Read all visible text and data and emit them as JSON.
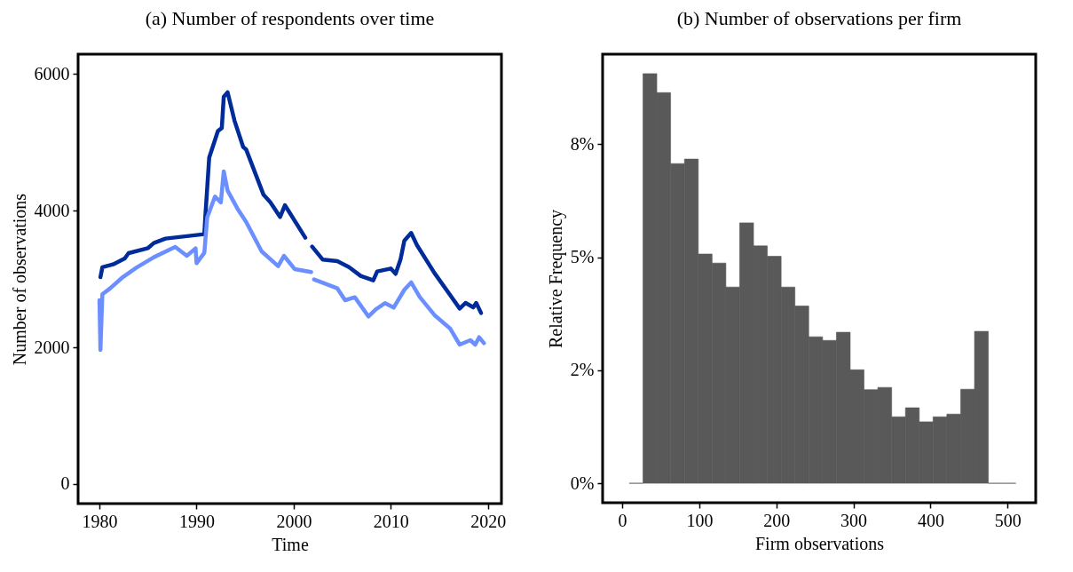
{
  "chart_data": [
    {
      "type": "line",
      "title": "(a) Number of respondents over time",
      "xlabel": "Time",
      "ylabel": "Number of observations",
      "xlim": [
        1977.8,
        2021.4
      ],
      "ylim": [
        -286,
        6287
      ],
      "xticks": [
        1980,
        1990,
        2000,
        2010,
        2020
      ],
      "yticks": [
        0,
        2000,
        4000,
        6000
      ],
      "series": [
        {
          "color": "#002b9a",
          "x": [
            1980.1,
            1980.3,
            1981.4,
            1982.6,
            1983.0,
            1985.0,
            1985.6,
            1986.8,
            1990.8,
            1990.9,
            1991.3,
            1992.2,
            1992.6,
            1992.8,
            1993.2,
            1993.9,
            1994.8,
            1995.1,
            1996.9,
            1997.6,
            1998.6,
            1999.1,
            2001.2,
            2001.6,
            2001.9,
            2003.0,
            2004.5,
            2005.7,
            2006.9,
            2008.2,
            2008.6,
            2010.0,
            2010.5,
            2011.0,
            2011.4,
            2012.1,
            2012.7,
            2014.5,
            2017.1,
            2017.7,
            2018.5,
            2018.8,
            2019.3
          ],
          "values": [
            3027,
            3170,
            3213,
            3299,
            3377,
            3451,
            3525,
            3590,
            3655,
            3906,
            4773,
            5163,
            5207,
            5663,
            5729,
            5318,
            4929,
            4895,
            4230,
            4121,
            3906,
            4078,
            3603,
            null,
            3473,
            3282,
            3260,
            3173,
            3044,
            2979,
            3109,
            3152,
            3075,
            3282,
            3559,
            3672,
            3494,
            3087,
            2567,
            2649,
            2584,
            2649,
            2502
          ]
        },
        {
          "color": "#6b8fff",
          "x": [
            1980.0,
            1980.1,
            1980.3,
            1981.1,
            1982.3,
            1983.8,
            1985.6,
            1987.8,
            1989.0,
            1989.9,
            1990.0,
            1990.8,
            1991.1,
            1991.9,
            1992.5,
            1992.8,
            1993.2,
            1994.2,
            1995.1,
            1996.7,
            1998.4,
            1999.0,
            2000.1,
            2001.8,
            2001.95,
            2002.1,
            2003.3,
            2004.5,
            2005.3,
            2006.3,
            2007.7,
            2008.5,
            2009.4,
            2010.3,
            2011.4,
            2012.1,
            2013.0,
            2014.5,
            2016.1,
            2017.1,
            2018.2,
            2018.7,
            2019.1,
            2019.6
          ],
          "values": [
            2689,
            1961,
            2776,
            2862,
            3014,
            3165,
            3317,
            3468,
            3338,
            3447,
            3230,
            3382,
            3901,
            4205,
            4118,
            4573,
            4291,
            4031,
            3836,
            3403,
            3187,
            3338,
            3144,
            3101,
            null,
            2992,
            2927,
            2862,
            2689,
            2732,
            2451,
            2559,
            2646,
            2581,
            2841,
            2949,
            2732,
            2472,
            2277,
            2039,
            2104,
            2039,
            2147,
            2061
          ]
        }
      ]
    },
    {
      "type": "histogram",
      "title": "(b) Number of observations per firm",
      "xlabel": "Firm observations",
      "ylabel": "Relative Frequency",
      "color": "#595959",
      "xlim": [
        -25.4,
        536.5
      ],
      "ylim": [
        -0.43,
        9.49
      ],
      "xticks": [
        0,
        100,
        200,
        300,
        400,
        500
      ],
      "yticks": [
        {
          "value": 0,
          "label": "0%"
        },
        {
          "value": 2.5,
          "label": "2%"
        },
        {
          "value": 5,
          "label": "5%"
        },
        {
          "value": 7.5,
          "label": "8%"
        }
      ],
      "bins": [
        9.1,
        27,
        44.9,
        62.8,
        80.8,
        98.7,
        116.6,
        134.5,
        152.4,
        170.4,
        188.3,
        206.2,
        224.1,
        242,
        260,
        277.9,
        295.8,
        313.7,
        331.6,
        349.6,
        367.5,
        385.4,
        403.3,
        421.2,
        439.2,
        457.1,
        475,
        492.9,
        510.8
      ],
      "values": [
        0,
        9.06,
        8.64,
        7.07,
        7.17,
        5.07,
        4.87,
        4.34,
        5.76,
        5.25,
        5.02,
        4.34,
        3.92,
        3.24,
        3.16,
        3.34,
        2.51,
        2.07,
        2.12,
        1.47,
        1.67,
        1.36,
        1.47,
        1.53,
        2.08,
        3.36,
        0,
        0
      ]
    }
  ]
}
